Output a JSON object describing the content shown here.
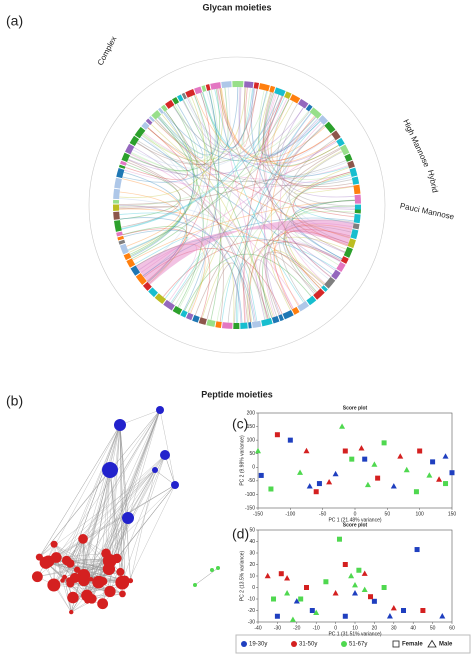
{
  "figure": {
    "top_title": "Glycan moieties",
    "mid_title": "Peptide moieties",
    "panels": [
      "(a)",
      "(b)",
      "(c)",
      "(d)"
    ],
    "glycan_classes": [
      "Complex",
      "High Mannose",
      "Hybrid",
      "Pauci Mannose"
    ],
    "sexes": [
      "Female",
      "Male"
    ]
  },
  "chart_data": [
    {
      "type": "scatter",
      "title": "Score plot",
      "x_label": "PC 1 (21.48% variance)",
      "y_label": "PC 2 (9.98% variance)",
      "xlim": [
        -150,
        150
      ],
      "xticks": [
        -150,
        -100,
        -50,
        0,
        50,
        100,
        150
      ],
      "ylim": [
        -150,
        200
      ],
      "yticks": [
        -150,
        -100,
        -50,
        0,
        50,
        100,
        150,
        200
      ],
      "series": [
        {
          "name": "19-30y",
          "color": "#1f3fbf",
          "x": [
            -145,
            -100,
            -70,
            -55,
            -30,
            15,
            60,
            120,
            140,
            150
          ],
          "values": [
            -30,
            100,
            -70,
            -60,
            -25,
            30,
            -70,
            20,
            40,
            -20
          ],
          "marker": [
            "square",
            "square",
            "triangle",
            "square",
            "triangle",
            "square",
            "triangle",
            "square",
            "triangle",
            "square"
          ]
        },
        {
          "name": "31-50y",
          "color": "#d42020",
          "x": [
            -120,
            -75,
            -60,
            -40,
            -15,
            10,
            35,
            70,
            100,
            130
          ],
          "values": [
            120,
            60,
            -90,
            -55,
            60,
            70,
            -40,
            40,
            60,
            -45
          ],
          "marker": [
            "square",
            "triangle",
            "square",
            "triangle",
            "square",
            "triangle",
            "square",
            "triangle",
            "square",
            "triangle"
          ]
        },
        {
          "name": "51-67y",
          "color": "#4fd84f",
          "x": [
            -150,
            -130,
            -85,
            -20,
            -5,
            20,
            45,
            80,
            95,
            115,
            140,
            30
          ],
          "values": [
            60,
            -80,
            -20,
            150,
            30,
            -65,
            90,
            -10,
            -90,
            -30,
            -60,
            10
          ],
          "marker": [
            "triangle",
            "square",
            "triangle",
            "triangle",
            "square",
            "triangle",
            "square",
            "triangle",
            "square",
            "triangle",
            "square",
            "triangle"
          ]
        }
      ]
    },
    {
      "type": "scatter",
      "title": "Score plot",
      "x_label": "PC 1 (31.51% variance)",
      "y_label": "PC 2 (13.5% variance)",
      "xlim": [
        -40,
        60
      ],
      "xticks": [
        -40,
        -30,
        -20,
        -10,
        0,
        10,
        20,
        30,
        40,
        50,
        60
      ],
      "ylim": [
        -30,
        50
      ],
      "yticks": [
        -30,
        -20,
        -10,
        0,
        10,
        20,
        30,
        40,
        50
      ],
      "series": [
        {
          "color": "#1f3fbf",
          "x": [
            -30,
            -20,
            -12,
            5,
            10,
            20,
            28,
            35,
            42,
            55
          ],
          "values": [
            -25,
            -12,
            -20,
            -25,
            -5,
            -12,
            -25,
            -20,
            33,
            -25
          ],
          "marker": [
            "square",
            "triangle",
            "square",
            "square",
            "triangle",
            "square",
            "triangle",
            "square",
            "square",
            "triangle"
          ]
        },
        {
          "color": "#d42020",
          "x": [
            -35,
            -28,
            -25,
            -15,
            0,
            5,
            15,
            18,
            30,
            45
          ],
          "values": [
            10,
            12,
            8,
            0,
            -5,
            20,
            12,
            -8,
            -18,
            -20
          ],
          "marker": [
            "triangle",
            "square",
            "triangle",
            "square",
            "triangle",
            "square",
            "triangle",
            "square",
            "triangle",
            "square"
          ]
        },
        {
          "color": "#4fd84f",
          "x": [
            -32,
            -25,
            -18,
            -10,
            -5,
            2,
            8,
            12,
            15,
            25,
            -22,
            10
          ],
          "values": [
            -10,
            -5,
            -10,
            -22,
            5,
            42,
            10,
            15,
            -2,
            0,
            -28,
            2
          ],
          "marker": [
            "square",
            "triangle",
            "square",
            "triangle",
            "square",
            "square",
            "triangle",
            "square",
            "triangle",
            "square",
            "triangle",
            "triangle"
          ]
        }
      ]
    }
  ]
}
